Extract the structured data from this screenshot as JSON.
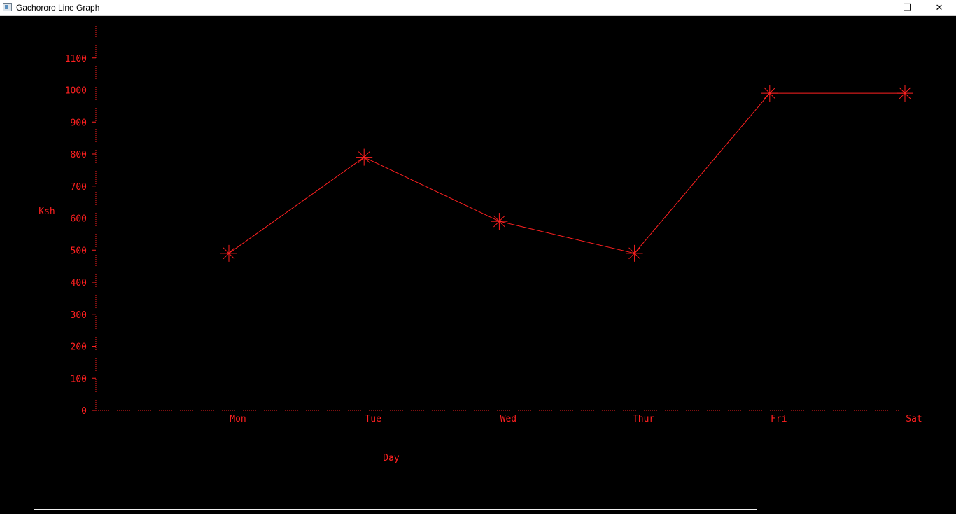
{
  "window": {
    "title": "Gachororo Line Graph",
    "minimize_glyph": "—",
    "maximize_glyph": "❐",
    "close_glyph": "✕"
  },
  "colors": {
    "background": "#000000",
    "plot": "#ff2020",
    "titlebar": "#ffffff"
  },
  "chart_data": {
    "type": "line",
    "title": "",
    "xlabel": "Day",
    "ylabel": "Ksh",
    "categories": [
      "Mon",
      "Tue",
      "Wed",
      "Thur",
      "Fri",
      "Sat"
    ],
    "values": [
      490,
      790,
      590,
      490,
      990,
      990
    ],
    "yticks": [
      0,
      100,
      200,
      300,
      400,
      500,
      600,
      700,
      800,
      900,
      1000,
      1100
    ],
    "ylim": [
      0,
      1100
    ],
    "marker": "asterisk",
    "grid": false,
    "legend": "none"
  }
}
